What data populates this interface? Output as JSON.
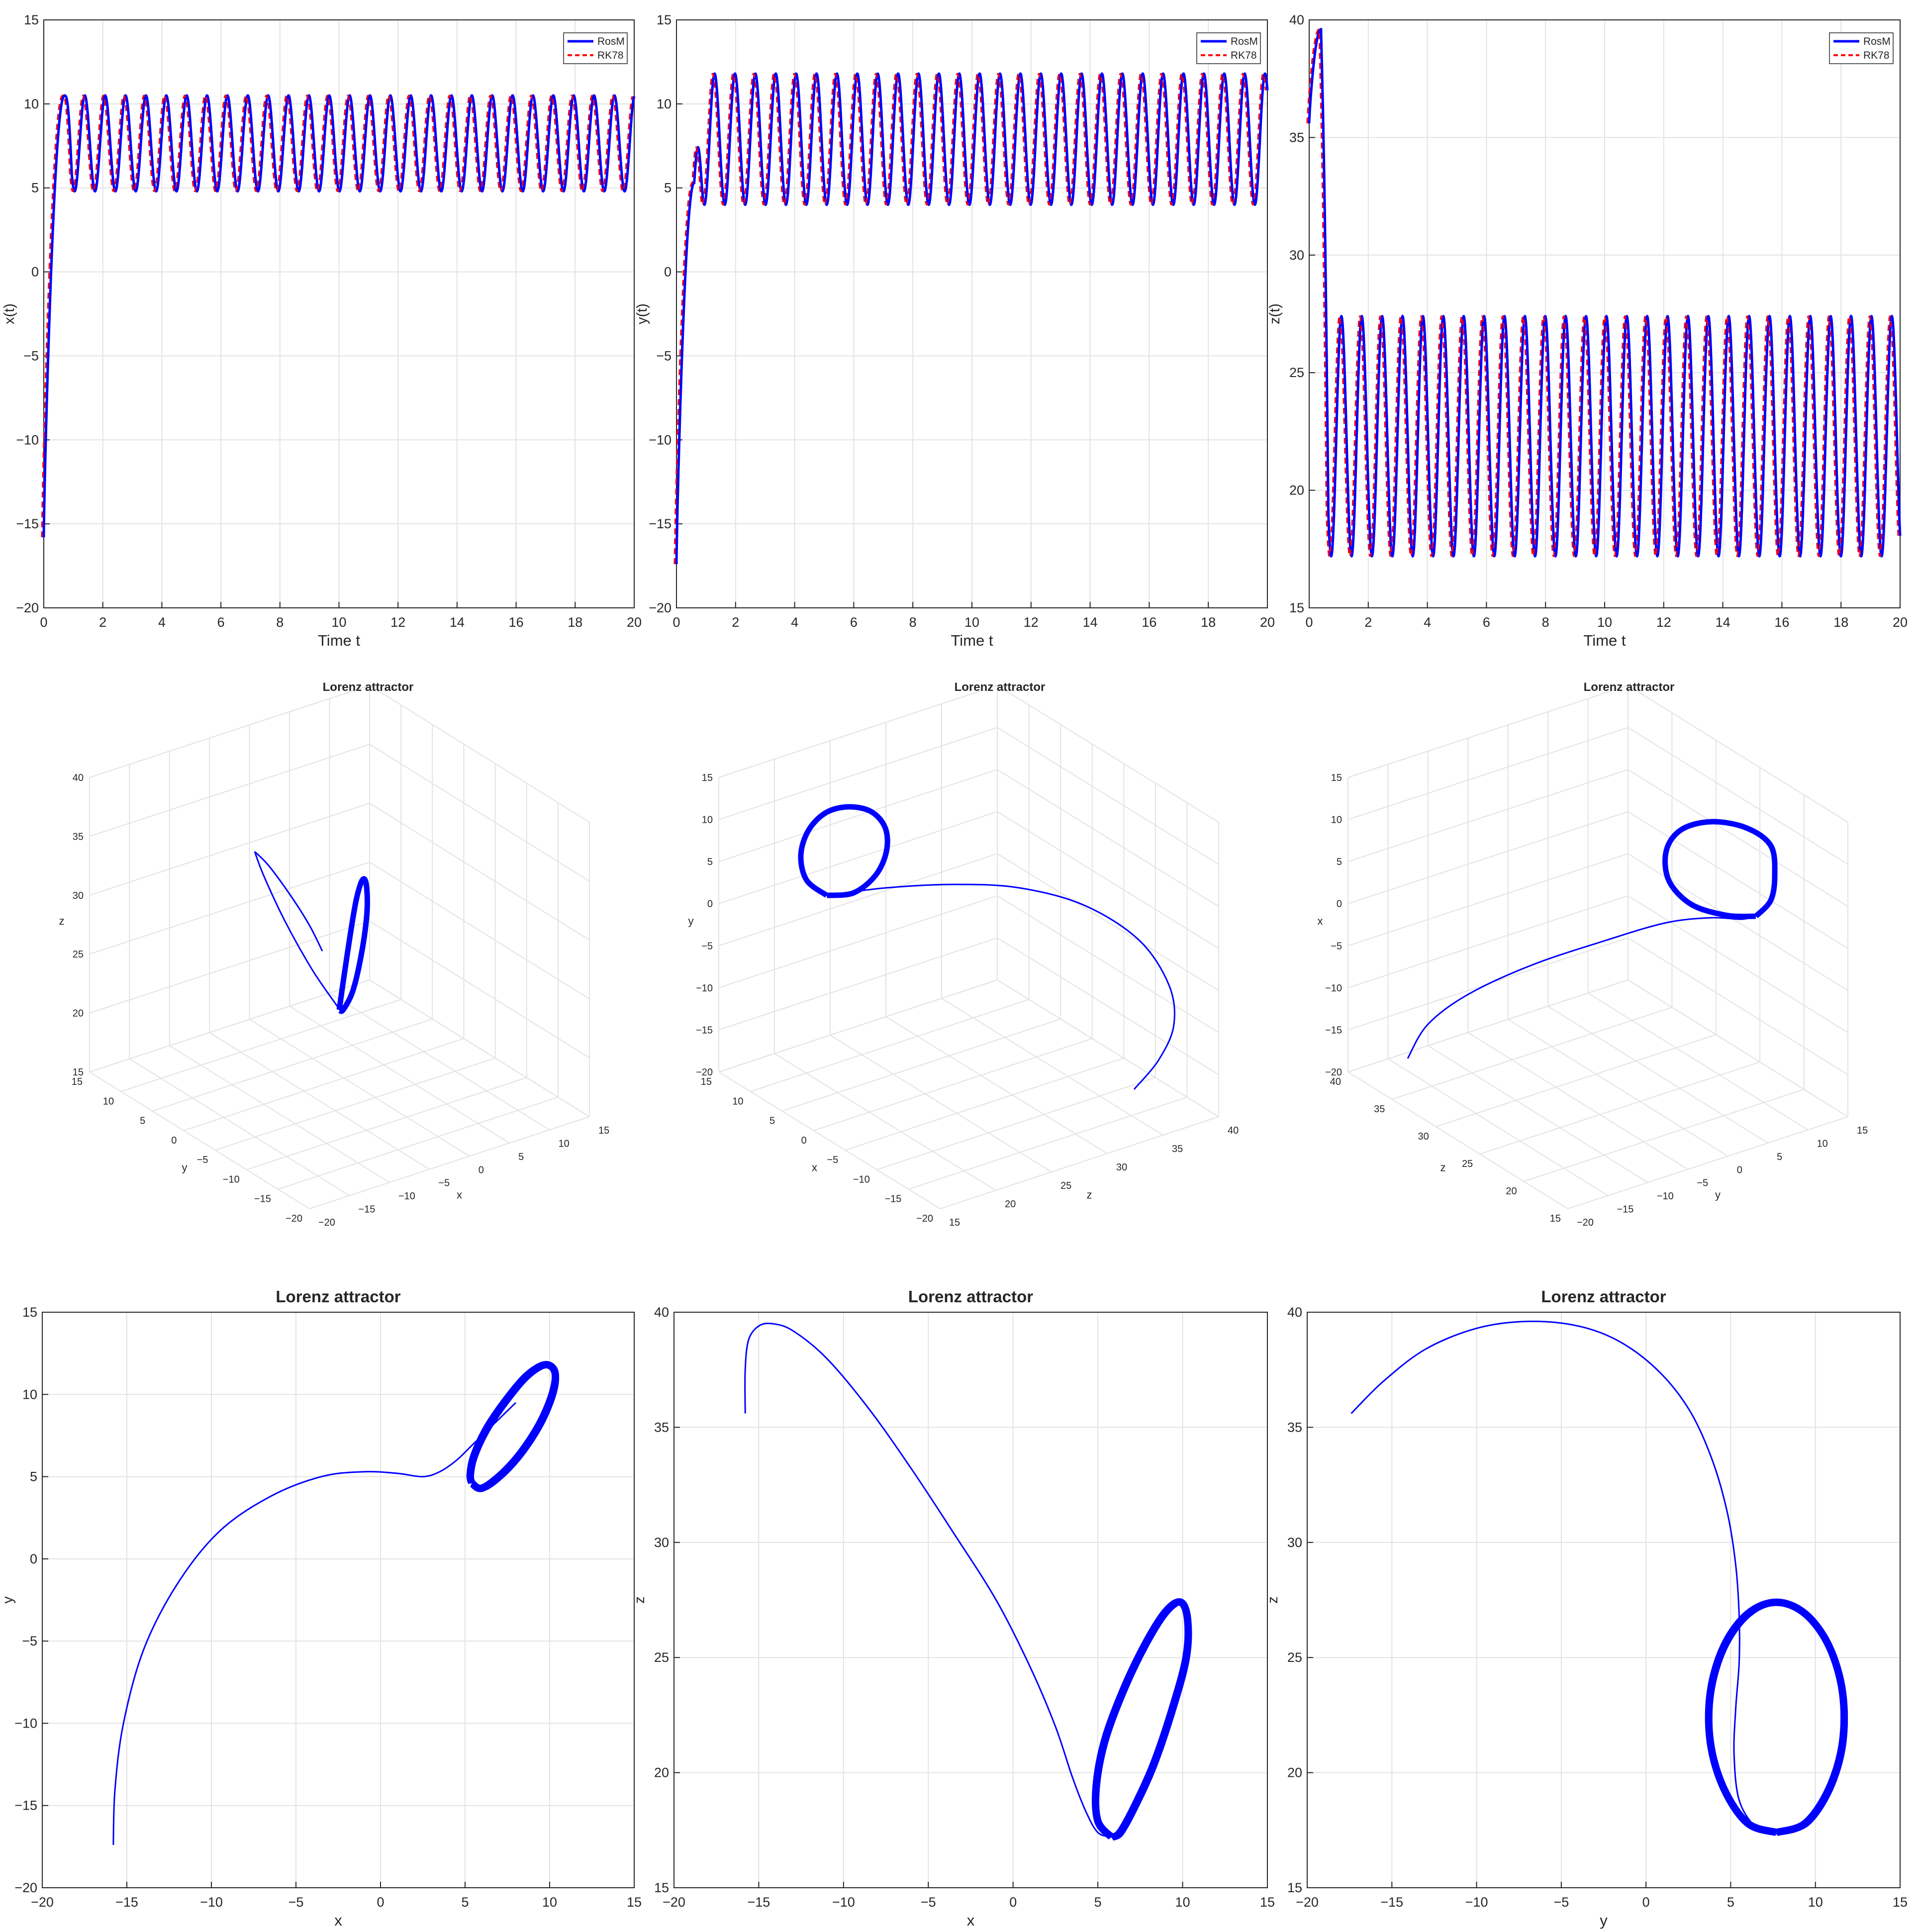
{
  "figure": {
    "background": "#ffffff",
    "grid_color": "#e3e3e3",
    "axis_color": "#262626"
  },
  "colors": {
    "RosM": "#0000ff",
    "RK78": "#ff0000"
  },
  "chart_data": [
    {
      "id": "xt",
      "type": "line",
      "title": "",
      "xlabel": "Time t",
      "ylabel": "x(t)",
      "xlim": [
        0,
        20
      ],
      "ylim": [
        -20,
        15
      ],
      "xticks": [
        0,
        2,
        4,
        6,
        8,
        10,
        12,
        14,
        16,
        18,
        20
      ],
      "yticks": [
        -20,
        -15,
        -10,
        -5,
        0,
        5,
        10,
        15
      ],
      "grid": true,
      "legend": "top-right",
      "series": [
        {
          "name": "RosM",
          "style": "solid",
          "color": "#0000ff"
        },
        {
          "name": "RK78",
          "style": "dashed",
          "color": "#ff0000"
        }
      ],
      "oscillation": {
        "t_start": 0.0,
        "y_start": -15.8,
        "t_settle": 0.7,
        "period": 0.69,
        "max": 10.5,
        "min": 4.8,
        "transient_peak": 10.5
      }
    },
    {
      "id": "yt",
      "type": "line",
      "title": "",
      "xlabel": "Time t",
      "ylabel": "y(t)",
      "xlim": [
        0,
        20
      ],
      "ylim": [
        -20,
        15
      ],
      "xticks": [
        0,
        2,
        4,
        6,
        8,
        10,
        12,
        14,
        16,
        18,
        20
      ],
      "yticks": [
        -20,
        -15,
        -10,
        -5,
        0,
        5,
        10,
        15
      ],
      "grid": true,
      "legend": "top-right",
      "series": [
        {
          "name": "RosM",
          "style": "solid",
          "color": "#0000ff"
        },
        {
          "name": "RK78",
          "style": "dashed",
          "color": "#ff0000"
        }
      ],
      "oscillation": {
        "t_start": 0.0,
        "y_start": -17.4,
        "t_settle": 0.6,
        "period": 0.69,
        "max": 11.8,
        "min": 4.0,
        "transient_peak": 5.3
      }
    },
    {
      "id": "zt",
      "type": "line",
      "title": "",
      "xlabel": "Time t",
      "ylabel": "z(t)",
      "xlim": [
        0,
        20
      ],
      "ylim": [
        15,
        40
      ],
      "xticks": [
        0,
        2,
        4,
        6,
        8,
        10,
        12,
        14,
        16,
        18,
        20
      ],
      "yticks": [
        15,
        20,
        25,
        30,
        35,
        40
      ],
      "grid": true,
      "legend": "top-right",
      "series": [
        {
          "name": "RosM",
          "style": "solid",
          "color": "#0000ff"
        },
        {
          "name": "RK78",
          "style": "dashed",
          "color": "#ff0000"
        }
      ],
      "oscillation": {
        "t_start": 0.0,
        "y_start": 35.6,
        "t_settle": 0.4,
        "period": 0.69,
        "max": 27.4,
        "min": 17.2,
        "transient_peak": 39.6
      }
    },
    {
      "id": "p3a",
      "type": "line",
      "title": "Lorenz attractor",
      "axes3d": true,
      "axis_labels": {
        "a": "x",
        "b": "y",
        "v": "z"
      },
      "a_ticks": [
        -20,
        -15,
        -10,
        -5,
        0,
        5,
        10,
        15
      ],
      "b_ticks": [
        -20,
        -15,
        -10,
        -5,
        0,
        5,
        10,
        15
      ],
      "v_ticks": [
        15,
        20,
        25,
        30,
        35,
        40
      ],
      "grid": true
    },
    {
      "id": "p3b",
      "type": "line",
      "title": "Lorenz attractor",
      "axes3d": true,
      "axis_labels": {
        "a": "z",
        "b": "x",
        "v": "y"
      },
      "a_ticks": [
        15,
        20,
        25,
        30,
        35,
        40
      ],
      "b_ticks": [
        -20,
        -15,
        -10,
        -5,
        0,
        5,
        10,
        15
      ],
      "v_ticks": [
        -20,
        -15,
        -10,
        -5,
        0,
        5,
        10,
        15
      ],
      "grid": true
    },
    {
      "id": "p3c",
      "type": "line",
      "title": "Lorenz attractor",
      "axes3d": true,
      "axis_labels": {
        "a": "y",
        "b": "z",
        "v": "x"
      },
      "a_ticks": [
        -20,
        -15,
        -10,
        -5,
        0,
        5,
        10,
        15
      ],
      "b_ticks": [
        15,
        20,
        25,
        30,
        35,
        40
      ],
      "v_ticks": [
        -20,
        -15,
        -10,
        -5,
        0,
        5,
        10,
        15
      ],
      "grid": true
    },
    {
      "id": "pxy",
      "type": "line",
      "title": "Lorenz attractor",
      "xlabel": "x",
      "ylabel": "y",
      "xlim": [
        -20,
        15
      ],
      "ylim": [
        -20,
        15
      ],
      "xticks": [
        -20,
        -15,
        -10,
        -5,
        0,
        5,
        10,
        15
      ],
      "yticks": [
        -20,
        -15,
        -10,
        -5,
        0,
        5,
        10,
        15
      ],
      "grid": true,
      "series": [
        {
          "part": "transient",
          "color": "#0000ff",
          "x": [
            -15.8,
            -15.7,
            -15.2,
            -14.0,
            -12.0,
            -9.5,
            -6.5,
            -3.5,
            -1.0,
            1.0,
            2.5,
            3.5,
            4.5,
            5.5,
            7.0,
            8.0
          ],
          "y": [
            -17.4,
            -14.0,
            -10.0,
            -5.5,
            -1.5,
            1.7,
            3.8,
            5.0,
            5.3,
            5.2,
            5.0,
            5.3,
            6.0,
            7.0,
            8.5,
            9.5
          ]
        },
        {
          "part": "limit-cycle",
          "color": "#0000ff",
          "x": [
            5.4,
            6.0,
            7.2,
            8.4,
            9.5,
            10.2,
            10.3,
            9.7,
            8.6,
            7.3,
            6.2,
            5.5,
            5.3,
            5.4
          ],
          "y": [
            4.6,
            4.3,
            5.2,
            6.6,
            8.4,
            10.2,
            11.4,
            11.8,
            11.1,
            9.5,
            7.8,
            6.2,
            5.1,
            4.6
          ]
        }
      ]
    },
    {
      "id": "pxz",
      "type": "line",
      "title": "Lorenz attractor",
      "xlabel": "x",
      "ylabel": "z",
      "xlim": [
        -20,
        15
      ],
      "ylim": [
        15,
        40
      ],
      "xticks": [
        -20,
        -15,
        -10,
        -5,
        0,
        5,
        10,
        15
      ],
      "yticks": [
        15,
        20,
        25,
        30,
        35,
        40
      ],
      "grid": true,
      "series": [
        {
          "part": "transient",
          "color": "#0000ff",
          "x": [
            -15.8,
            -15.8,
            -15.6,
            -15.0,
            -14.2,
            -13.0,
            -11.0,
            -8.5,
            -6.0,
            -3.5,
            -1.0,
            1.0,
            2.5,
            3.5,
            4.3,
            5.0,
            5.8
          ],
          "y": [
            35.6,
            37.5,
            38.8,
            39.4,
            39.5,
            39.2,
            38.0,
            35.8,
            33.2,
            30.4,
            27.5,
            24.6,
            22.0,
            19.8,
            18.3,
            17.4,
            17.2
          ]
        },
        {
          "part": "limit-cycle",
          "color": "#0000ff",
          "x": [
            5.8,
            6.3,
            7.2,
            8.3,
            9.4,
            10.2,
            10.3,
            9.9,
            9.0,
            7.8,
            6.5,
            5.4,
            4.9,
            5.0,
            5.8
          ],
          "y": [
            17.2,
            17.4,
            18.6,
            20.4,
            22.8,
            25.0,
            26.6,
            27.4,
            27.0,
            25.6,
            23.6,
            21.4,
            19.4,
            17.9,
            17.2
          ]
        }
      ]
    },
    {
      "id": "pyz",
      "type": "line",
      "title": "Lorenz attractor",
      "xlabel": "y",
      "ylabel": "z",
      "xlim": [
        -20,
        15
      ],
      "ylim": [
        15,
        40
      ],
      "xticks": [
        -20,
        -15,
        -10,
        -5,
        0,
        5,
        10,
        15
      ],
      "yticks": [
        15,
        20,
        25,
        30,
        35,
        40
      ],
      "grid": true,
      "series": [
        {
          "part": "transient",
          "color": "#0000ff",
          "x": [
            -17.4,
            -15.5,
            -13.0,
            -10.0,
            -7.0,
            -4.0,
            -1.5,
            0.8,
            2.6,
            3.9,
            4.8,
            5.3,
            5.5,
            5.5,
            5.3,
            5.2,
            5.5,
            6.5,
            7.5
          ],
          "y": [
            35.6,
            37.0,
            38.4,
            39.3,
            39.6,
            39.4,
            38.7,
            37.4,
            35.7,
            33.6,
            31.3,
            29.0,
            26.8,
            24.8,
            22.8,
            20.8,
            18.8,
            17.6,
            17.3
          ]
        },
        {
          "part": "limit-cycle",
          "color": "#0000ff",
          "x": [
            7.7,
            9.4,
            10.8,
            11.6,
            11.6,
            10.8,
            9.4,
            7.7,
            6.0,
            4.6,
            3.8,
            3.8,
            4.6,
            6.0,
            7.7
          ],
          "y": [
            17.4,
            17.8,
            19.3,
            21.3,
            23.5,
            25.5,
            26.9,
            27.4,
            26.9,
            25.5,
            23.5,
            21.3,
            19.3,
            17.8,
            17.4
          ]
        }
      ]
    }
  ]
}
